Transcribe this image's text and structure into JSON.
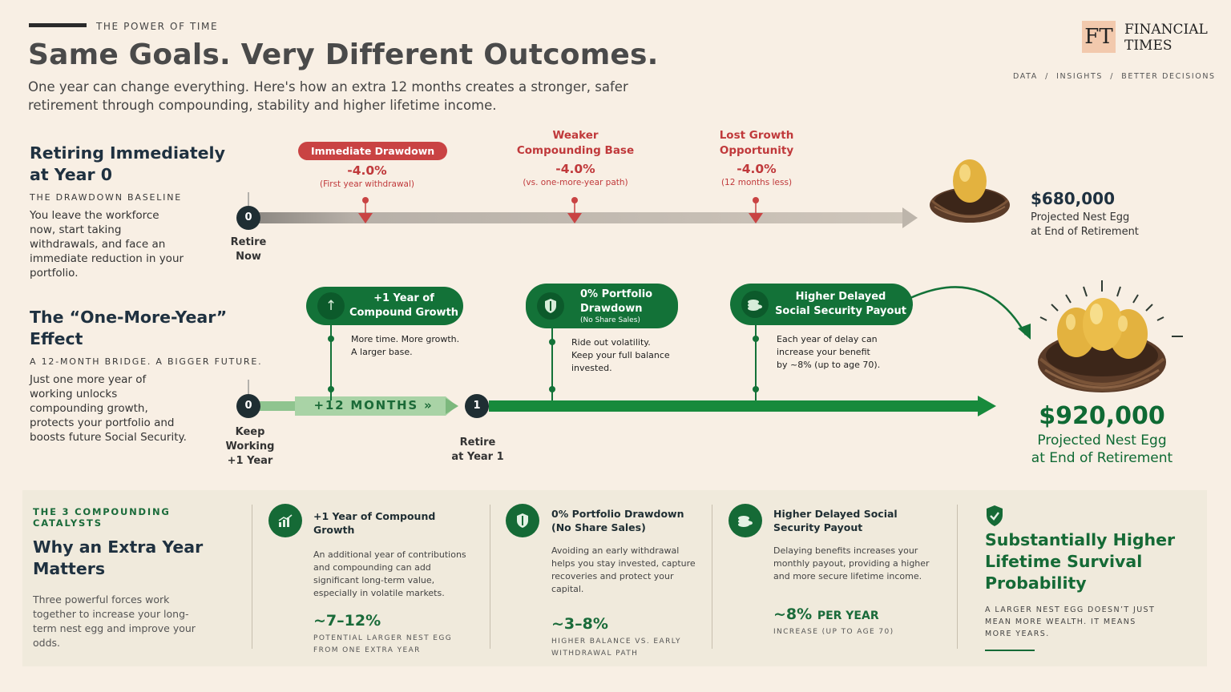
{
  "header": {
    "kicker": "THE POWER OF TIME",
    "title": "Same Goals. Very Different Outcomes.",
    "subtitle": "One year can change everything. Here's how an extra 12 months creates a stronger, safer retirement through compounding, stability and higher lifetime income."
  },
  "brand": {
    "logo_mark": "FT",
    "name_line1": "FINANCIAL",
    "name_line2": "TIMES",
    "tagline": "DATA  /  INSIGHTS  /  BETTER DECISIONS"
  },
  "scenario_a": {
    "title_line1": "Retiring Immediately",
    "title_line2": "at Year 0",
    "kicker": "THE DRAWDOWN BASELINE",
    "body": "You leave the workforce now, start taking withdrawals, and face an immediate reduction in your portfolio.",
    "node": "0",
    "node_label_line1": "Retire",
    "node_label_line2": "Now",
    "markers": [
      {
        "title": "Immediate Drawdown",
        "value": "-4.0%",
        "note": "(First year withdrawal)"
      },
      {
        "title_line1": "Weaker",
        "title_line2": "Compounding Base",
        "value": "-4.0%",
        "note": "(vs. one-more-year path)"
      },
      {
        "title_line1": "Lost Growth",
        "title_line2": "Opportunity",
        "value": "-4.0%",
        "note": "(12 months less)"
      }
    ],
    "outcome_value": "$680,000",
    "outcome_label_line1": "Projected Nest Egg",
    "outcome_label_line2": "at End of Retirement"
  },
  "scenario_b": {
    "title_line1": "The “One-More-Year”",
    "title_line2": "Effect",
    "kicker": "A 12-MONTH BRIDGE. A BIGGER FUTURE.",
    "body": "Just one more year of working unlocks compounding growth, protects your portfolio and boosts future Social Security.",
    "start_node": "0",
    "start_label": [
      "Keep",
      "Working",
      "+1 Year"
    ],
    "bridge_label": "+12 MONTHS »",
    "end_node": "1",
    "end_label": [
      "Retire",
      "at Year 1"
    ],
    "benefits": [
      {
        "icon": "arrow-up-icon",
        "line1": "+1 Year of",
        "line2": "Compound Growth",
        "sub": "",
        "note": [
          "More time. More growth.",
          "A larger base."
        ]
      },
      {
        "icon": "shield-icon",
        "line1": "0% Portfolio",
        "line2": "Drawdown",
        "sub": "(No Share Sales)",
        "note": [
          "Ride out volatility.",
          "Keep your full balance",
          "invested."
        ]
      },
      {
        "icon": "coins-icon",
        "line1": "Higher Delayed",
        "line2": "Social Security Payout",
        "sub": "",
        "note": [
          "Each year of delay can",
          "increase your benefit",
          "by ~8% (up to age 70)."
        ]
      }
    ],
    "outcome_value": "$920,000",
    "outcome_label_line1": "Projected Nest Egg",
    "outcome_label_line2": "at End of Retirement"
  },
  "catalysts": {
    "kicker": "THE 3 COMPOUNDING CATALYSTS",
    "title_line1": "Why an Extra Year",
    "title_line2": "Matters",
    "body": "Three powerful forces work together to increase your long-term nest egg and improve your odds.",
    "items": [
      {
        "icon": "growth-chart-icon",
        "title": "+1 Year of Compound Growth",
        "body": "An additional year of contributions and compounding can add significant long-term value, especially in volatile markets.",
        "value": "~7–12%",
        "value_suffix": "",
        "foot": "POTENTIAL LARGER NEST EGG FROM ONE EXTRA YEAR"
      },
      {
        "icon": "shield-icon",
        "title": "0% Portfolio Drawdown (No Share Sales)",
        "body": "Avoiding an early withdrawal helps you stay invested, capture recoveries and protect your capital.",
        "value": "~3–8%",
        "value_suffix": "",
        "foot": "HIGHER BALANCE VS. EARLY WITHDRAWAL PATH"
      },
      {
        "icon": "coins-icon",
        "title": "Higher Delayed Social Security Payout",
        "body": "Delaying benefits increases your monthly payout, providing a higher and more secure lifetime income.",
        "value": "~8%",
        "value_suffix": "PER YEAR",
        "foot": "INCREASE (UP TO AGE 70)"
      }
    ],
    "summary": {
      "icon": "shield-icon",
      "title": "Substantially Higher Lifetime Survival Probability",
      "body": "A LARGER NEST EGG DOESN’T JUST MEAN MORE WEALTH. IT MEANS MORE YEARS."
    }
  },
  "colors": {
    "background": "#f8efe4",
    "red": "#c94343",
    "green": "#137238",
    "navy": "#1f3140"
  }
}
